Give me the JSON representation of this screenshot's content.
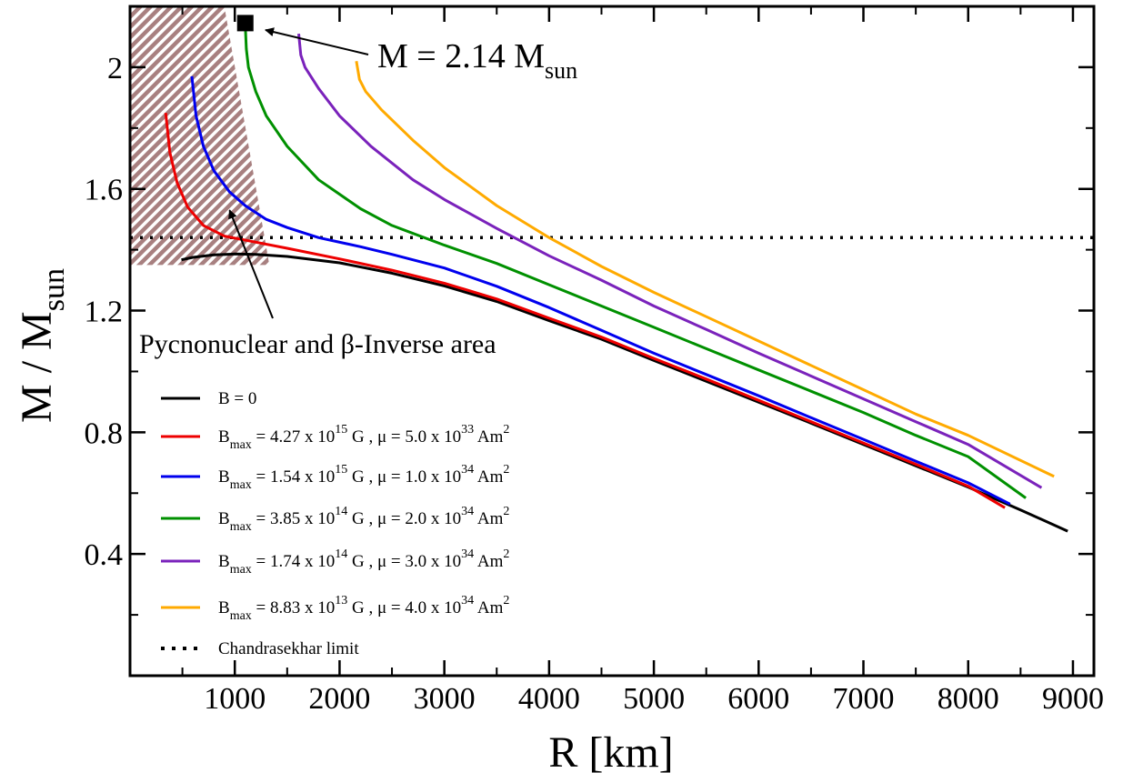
{
  "chart_data": {
    "type": "line",
    "title": "",
    "xlabel": {
      "main": "R [km]"
    },
    "ylabel": {
      "main": "M / M",
      "sub": "sun"
    },
    "xlim": [
      0,
      9200
    ],
    "ylim": [
      0,
      2.2
    ],
    "xticks": [
      1000,
      2000,
      3000,
      4000,
      5000,
      6000,
      7000,
      8000,
      9000
    ],
    "xtick_labels": [
      "1000",
      "2000",
      "3000",
      "4000",
      "5000",
      "6000",
      "7000",
      "8000",
      "9000"
    ],
    "yticks": [
      0.4,
      0.8,
      1.2,
      1.6,
      2.0
    ],
    "ytick_labels": [
      "0.4",
      "0.8",
      "1.2",
      "1.6",
      "2"
    ],
    "grid": false,
    "legend_position": "bottom-left",
    "series": [
      {
        "name": "B = 0",
        "label": {
          "pre": "B = 0"
        },
        "color": "#000000",
        "points": [
          [
            490,
            1.367
          ],
          [
            600,
            1.375
          ],
          [
            800,
            1.383
          ],
          [
            1000,
            1.386
          ],
          [
            1200,
            1.385
          ],
          [
            1500,
            1.378
          ],
          [
            2000,
            1.357
          ],
          [
            2500,
            1.323
          ],
          [
            3000,
            1.281
          ],
          [
            3500,
            1.23
          ],
          [
            4000,
            1.167
          ],
          [
            4500,
            1.106
          ],
          [
            5000,
            1.036
          ],
          [
            5500,
            0.968
          ],
          [
            6000,
            0.899
          ],
          [
            6500,
            0.83
          ],
          [
            7000,
            0.76
          ],
          [
            7500,
            0.69
          ],
          [
            8000,
            0.62
          ],
          [
            8500,
            0.545
          ],
          [
            8950,
            0.475
          ]
        ]
      },
      {
        "name": "B_max = 4.27 x 10^15 G, μ = 5.0 x 10^33 Am^2",
        "label": {
          "pre": "B",
          "sub1": "max",
          "mid1": " = 4.27 x 10",
          "sup1": "15",
          "mid2": " G , μ = 5.0 x 10",
          "sup2": "33",
          "mid3": " Am",
          "sup3": "2"
        },
        "color": "#ee0000",
        "points": [
          [
            340,
            1.85
          ],
          [
            380,
            1.72
          ],
          [
            450,
            1.62
          ],
          [
            550,
            1.54
          ],
          [
            700,
            1.48
          ],
          [
            900,
            1.445
          ],
          [
            1200,
            1.425
          ],
          [
            1500,
            1.405
          ],
          [
            2000,
            1.37
          ],
          [
            2500,
            1.333
          ],
          [
            3000,
            1.29
          ],
          [
            3500,
            1.238
          ],
          [
            4000,
            1.175
          ],
          [
            4500,
            1.113
          ],
          [
            5000,
            1.043
          ],
          [
            5500,
            0.975
          ],
          [
            6000,
            0.905
          ],
          [
            6500,
            0.835
          ],
          [
            7000,
            0.765
          ],
          [
            7500,
            0.695
          ],
          [
            8000,
            0.623
          ],
          [
            8350,
            0.552
          ]
        ]
      },
      {
        "name": "B_max = 1.54 x 10^15 G, μ = 1.0 x 10^34 Am^2",
        "label": {
          "pre": "B",
          "sub1": "max",
          "mid1": " = 1.54 x 10",
          "sup1": "15",
          "mid2": " G , μ = 1.0 x 10",
          "sup2": "34",
          "mid3": " Am",
          "sup3": "2"
        },
        "color": "#0000ee",
        "points": [
          [
            590,
            1.97
          ],
          [
            630,
            1.84
          ],
          [
            700,
            1.74
          ],
          [
            800,
            1.66
          ],
          [
            950,
            1.59
          ],
          [
            1100,
            1.545
          ],
          [
            1300,
            1.5
          ],
          [
            1500,
            1.473
          ],
          [
            1800,
            1.44
          ],
          [
            2200,
            1.41
          ],
          [
            2500,
            1.385
          ],
          [
            3000,
            1.34
          ],
          [
            3500,
            1.28
          ],
          [
            4000,
            1.21
          ],
          [
            4500,
            1.135
          ],
          [
            5000,
            1.06
          ],
          [
            5500,
            0.99
          ],
          [
            6000,
            0.92
          ],
          [
            6500,
            0.848
          ],
          [
            7000,
            0.777
          ],
          [
            7500,
            0.705
          ],
          [
            8000,
            0.634
          ],
          [
            8400,
            0.564
          ]
        ]
      },
      {
        "name": "B_max = 3.85 x 10^14 G, μ = 2.0 x 10^34 Am^2",
        "label": {
          "pre": "B",
          "sub1": "max",
          "mid1": " = 3.85 x 10",
          "sup1": "14",
          "mid2": " G , μ = 2.0 x 10",
          "sup2": "34",
          "mid3": " Am",
          "sup3": "2"
        },
        "color": "#009000",
        "points": [
          [
            1100,
            2.14
          ],
          [
            1110,
            2.06
          ],
          [
            1130,
            2.0
          ],
          [
            1200,
            1.92
          ],
          [
            1300,
            1.84
          ],
          [
            1500,
            1.74
          ],
          [
            1800,
            1.63
          ],
          [
            2200,
            1.535
          ],
          [
            2500,
            1.48
          ],
          [
            3000,
            1.415
          ],
          [
            3500,
            1.355
          ],
          [
            4000,
            1.285
          ],
          [
            4500,
            1.215
          ],
          [
            5000,
            1.145
          ],
          [
            5500,
            1.075
          ],
          [
            6000,
            1.005
          ],
          [
            6500,
            0.935
          ],
          [
            7000,
            0.865
          ],
          [
            7500,
            0.79
          ],
          [
            8000,
            0.72
          ],
          [
            8550,
            0.584
          ]
        ]
      },
      {
        "name": "B_max = 1.74 x 10^14 G, μ = 3.0 x 10^34 Am^2",
        "label": {
          "pre": "B",
          "sub1": "max",
          "mid1": " = 1.74 x 10",
          "sup1": "14",
          "mid2": " G , μ = 3.0 x 10",
          "sup2": "34",
          "mid3": " Am",
          "sup3": "2"
        },
        "color": "#7a22bb",
        "points": [
          [
            1610,
            2.11
          ],
          [
            1630,
            2.04
          ],
          [
            1670,
            2.0
          ],
          [
            1800,
            1.93
          ],
          [
            2000,
            1.84
          ],
          [
            2300,
            1.74
          ],
          [
            2700,
            1.63
          ],
          [
            3000,
            1.565
          ],
          [
            3500,
            1.47
          ],
          [
            4000,
            1.38
          ],
          [
            4500,
            1.3
          ],
          [
            5000,
            1.215
          ],
          [
            5500,
            1.138
          ],
          [
            6000,
            1.06
          ],
          [
            6500,
            0.985
          ],
          [
            7000,
            0.91
          ],
          [
            7500,
            0.835
          ],
          [
            8000,
            0.76
          ],
          [
            8700,
            0.618
          ]
        ]
      },
      {
        "name": "B_max = 8.83 x 10^13 G, μ = 4.0 x 10^34 Am^2",
        "label": {
          "pre": "B",
          "sub1": "max",
          "mid1": " = 8.83 x 10",
          "sup1": "13",
          "mid2": " G , μ =  4.0 x 10",
          "sup2": "34",
          "mid3": " Am",
          "sup3": "2"
        },
        "color": "#ffaa00",
        "points": [
          [
            2160,
            2.02
          ],
          [
            2190,
            1.96
          ],
          [
            2250,
            1.92
          ],
          [
            2400,
            1.86
          ],
          [
            2700,
            1.76
          ],
          [
            3000,
            1.67
          ],
          [
            3500,
            1.545
          ],
          [
            4000,
            1.44
          ],
          [
            4500,
            1.345
          ],
          [
            5000,
            1.26
          ],
          [
            5500,
            1.18
          ],
          [
            6000,
            1.1
          ],
          [
            6500,
            1.02
          ],
          [
            7000,
            0.94
          ],
          [
            7500,
            0.86
          ],
          [
            8000,
            0.79
          ],
          [
            8820,
            0.655
          ]
        ]
      }
    ],
    "reference_line": {
      "name": "Chandrasekhar limit",
      "label": "Chandrasekhar limit",
      "y": 1.44,
      "style": "dotted",
      "color": "#000000"
    },
    "shaded_region": {
      "label": "Pycnonuclear and β-Inverse area",
      "polygon": [
        [
          0,
          2.2
        ],
        [
          900,
          2.2
        ],
        [
          1330,
          1.35
        ],
        [
          0,
          1.35
        ]
      ],
      "fill": "#a88080"
    },
    "max_marker": {
      "x": 1100,
      "y": 2.145,
      "label_pre": "M = 2.14 M",
      "label_sub": "sun"
    },
    "annotations": [
      {
        "text": "Pycnonuclear and β-Inverse area",
        "arrow_to": [
          950,
          1.53
        ]
      }
    ]
  }
}
